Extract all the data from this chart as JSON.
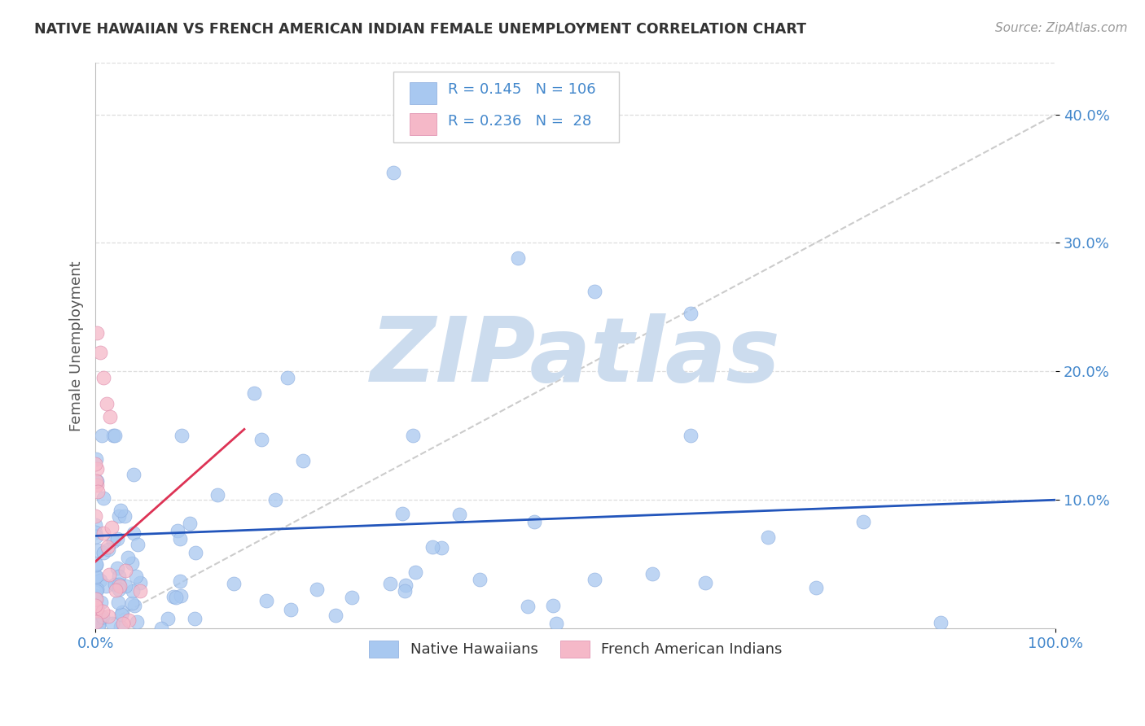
{
  "title": "NATIVE HAWAIIAN VS FRENCH AMERICAN INDIAN FEMALE UNEMPLOYMENT CORRELATION CHART",
  "source_text": "Source: ZipAtlas.com",
  "ylabel": "Female Unemployment",
  "xlim": [
    0,
    1
  ],
  "ylim": [
    0,
    0.44
  ],
  "x_tick_labels": [
    "0.0%",
    "100.0%"
  ],
  "y_tick_values": [
    0.1,
    0.2,
    0.3,
    0.4
  ],
  "y_tick_labels": [
    "10.0%",
    "20.0%",
    "30.0%",
    "40.0%"
  ],
  "series1_color": "#a8c8f0",
  "series2_color": "#f5b8c8",
  "line1_color": "#2255bb",
  "line2_color": "#dd3355",
  "diag_color": "#cccccc",
  "watermark": "ZIPatlas",
  "watermark_color": "#ccdcee",
  "background_color": "#ffffff",
  "grid_color": "#dddddd",
  "series1_label": "Native Hawaiians",
  "series2_label": "French American Indians",
  "legend_r1": "0.145",
  "legend_n1": "106",
  "legend_r2": "0.236",
  "legend_n2": "28",
  "tick_color": "#4488cc",
  "title_color": "#333333",
  "source_color": "#999999"
}
